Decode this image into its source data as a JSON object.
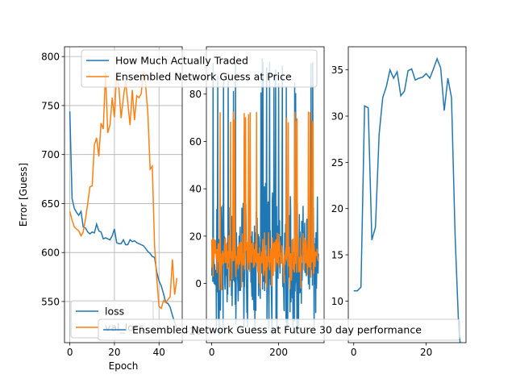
{
  "chart_data": [
    {
      "type": "line",
      "xlabel": "Epoch",
      "ylabel": "Error [Guess]",
      "xlim": [
        -2.4,
        50.4
      ],
      "ylim": [
        508,
        810
      ],
      "xticks": [
        0,
        20,
        40
      ],
      "yticks": [
        550,
        600,
        650,
        700,
        750,
        800
      ],
      "grid": true,
      "legend": {
        "placement": "lower-left",
        "entries": [
          "loss",
          "val_loss"
        ]
      },
      "series": [
        {
          "name": "loss",
          "color": "#1f77b4",
          "x": [
            0,
            1,
            2,
            3,
            4,
            5,
            6,
            7,
            8,
            9,
            10,
            11,
            12,
            13,
            14,
            15,
            16,
            17,
            18,
            19,
            20,
            21,
            22,
            23,
            24,
            25,
            26,
            27,
            28,
            29,
            30,
            31,
            32,
            33,
            34,
            35,
            36,
            37,
            38,
            39,
            40,
            41,
            42,
            43,
            44,
            45,
            46,
            47,
            48
          ],
          "values": [
            744,
            655,
            645,
            641,
            638,
            642,
            626,
            625,
            621,
            619,
            621,
            620,
            629,
            622,
            621,
            614,
            615,
            614,
            613,
            617,
            624,
            610,
            609,
            609,
            613,
            608,
            608,
            613,
            611,
            612,
            610,
            609,
            608,
            607,
            604,
            601,
            599,
            596,
            595,
            580,
            571,
            566,
            558,
            549,
            548,
            544,
            536,
            529,
            522
          ]
        },
        {
          "name": "val_loss",
          "color": "#ff7f0e",
          "x": [
            0,
            1,
            2,
            3,
            4,
            5,
            6,
            7,
            8,
            9,
            10,
            11,
            12,
            13,
            14,
            15,
            16,
            17,
            18,
            19,
            20,
            21,
            22,
            23,
            24,
            25,
            26,
            27,
            28,
            29,
            30,
            31,
            32,
            33,
            34,
            35,
            36,
            37,
            38,
            39,
            40,
            41,
            42,
            43,
            44,
            45,
            46,
            47,
            48
          ],
          "values": [
            642,
            633,
            626,
            624,
            622,
            617,
            621,
            634,
            650,
            667,
            668,
            710,
            717,
            698,
            732,
            726,
            784,
            722,
            730,
            758,
            738,
            784,
            768,
            737,
            758,
            775,
            753,
            730,
            766,
            735,
            760,
            758,
            762,
            785,
            770,
            742,
            685,
            688,
            607,
            573,
            545,
            543,
            551,
            549,
            552,
            555,
            593,
            557,
            574
          ]
        }
      ]
    },
    {
      "type": "line",
      "ylim": [
        -25,
        100
      ],
      "xlim": [
        -16,
        336
      ],
      "xticks": [
        0,
        200
      ],
      "yticks": [
        -20,
        0,
        20,
        40,
        60,
        80
      ],
      "legend": {
        "placement": "top",
        "entries": [
          "How Much Actually Traded",
          "Ensembled Network Guess at Price"
        ]
      },
      "series": [
        {
          "name": "How Much Actually Traded",
          "color": "#1f77b4",
          "n": 320,
          "seed": 7,
          "range": [
            -22,
            95
          ],
          "mean": 12,
          "spread": 26
        },
        {
          "name": "Ensembled Network Guess at Price",
          "color": "#ff7f0e",
          "n": 320,
          "seed": 19,
          "range": [
            -3,
            73
          ],
          "mean": 12,
          "spread": 9
        }
      ]
    },
    {
      "type": "line",
      "xlim": [
        -1.5,
        31
      ],
      "ylim": [
        5.5,
        37.5
      ],
      "xticks": [
        0,
        20
      ],
      "yticks": [
        10,
        15,
        20,
        25,
        30,
        35
      ],
      "legend": {
        "placement": "bottom",
        "entries": [
          "Ensembled Network Guess at Future 30 day performance"
        ]
      },
      "series": [
        {
          "name": "Ensembled Network Guess at Future 30 day performance",
          "color": "#1f77b4",
          "x": [
            0,
            1,
            2,
            3,
            4,
            5,
            6,
            7,
            8,
            9,
            10,
            11,
            12,
            13,
            14,
            15,
            16,
            17,
            18,
            19,
            20,
            21,
            22,
            23,
            24,
            25,
            26,
            27,
            28,
            29,
            30
          ],
          "values": [
            11.1,
            11.1,
            11.5,
            31.1,
            30.9,
            16.6,
            18.0,
            28.0,
            32.0,
            33.2,
            35.0,
            34.1,
            34.8,
            32.2,
            32.7,
            34.9,
            35.1,
            33.9,
            34.1,
            34.2,
            34.6,
            34.1,
            35.1,
            36.2,
            35.2,
            30.6,
            34.1,
            32.0,
            17.0,
            7.0,
            3.0
          ]
        }
      ]
    }
  ]
}
